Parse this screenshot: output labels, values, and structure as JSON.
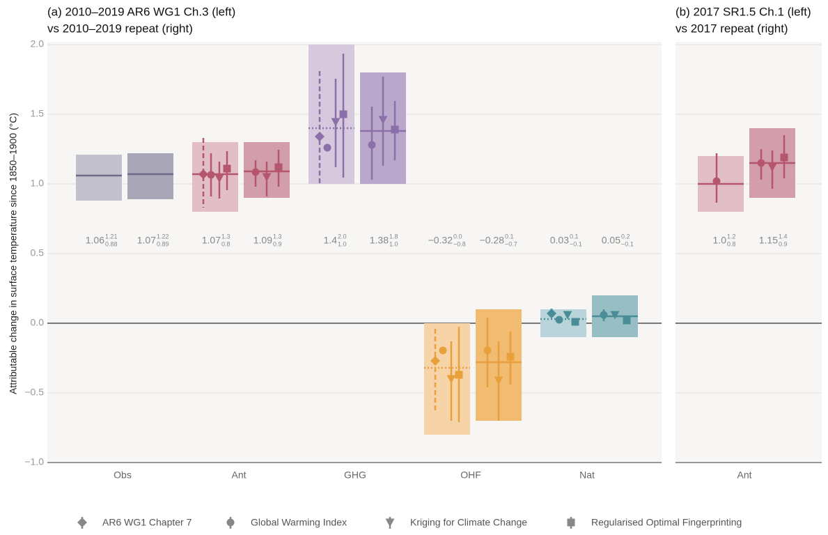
{
  "chart_data": {
    "type": "interval",
    "y_label": "Attributable change in surface temperature since 1850–1900 (°C)",
    "ylim": [
      -1,
      2
    ],
    "yticks": [
      {
        "value": -1,
        "label": "−1.0"
      },
      {
        "value": -0.5,
        "label": "−0.5"
      },
      {
        "value": 0,
        "label": "0.0"
      },
      0.5,
      {
        "value": 1,
        "label": "1.0"
      },
      1.5,
      {
        "value": 2,
        "label": "2.0"
      }
    ],
    "grid": true,
    "methods": [
      {
        "name": "AR6 WG1 Chapter 7",
        "marker": "diamond",
        "line": "dashed"
      },
      {
        "name": "Global Warming Index",
        "marker": "circle",
        "line": "solid"
      },
      {
        "name": "Kriging for Climate Change",
        "marker": "triangle-down",
        "line": "solid"
      },
      {
        "name": "Regularised Optimal Fingerprinting",
        "marker": "square",
        "line": "solid"
      }
    ],
    "panels": [
      {
        "title_lines": [
          "(a) 2010–2019 AR6 WG1 Ch.3 (left)",
          "vs 2010–2019 repeat (right)"
        ],
        "categories": [
          {
            "name": "Obs",
            "color": "#6f6a87",
            "boxes": [
              {
                "value": 1.06,
                "low": 0.88,
                "high": 1.21,
                "labels": {
                  "value": "1.06",
                  "low": "0.88",
                  "high": "1.21"
                },
                "fill": "#c3c0cd",
                "line": "solid",
                "estimates": []
              },
              {
                "value": 1.07,
                "low": 0.89,
                "high": 1.22,
                "labels": {
                  "value": "1.07",
                  "low": "0.89",
                  "high": "1.22"
                },
                "fill": "#a9a6b8",
                "line": "solid",
                "estimates": []
              }
            ]
          },
          {
            "name": "Ant",
            "color": "#b5566e",
            "boxes": [
              {
                "value": 1.07,
                "low": 0.8,
                "high": 1.3,
                "labels": {
                  "value": "1.07",
                  "low": "0.8",
                  "high": "1.3"
                },
                "fill": "#e2bfc8",
                "line": "solid",
                "estimates": [
                  {
                    "method": 0,
                    "value": 1.07,
                    "low": 0.83,
                    "high": 1.33
                  },
                  {
                    "method": 1,
                    "value": 1.065,
                    "low": 0.91,
                    "high": 1.22
                  },
                  {
                    "method": 2,
                    "value": 1.04,
                    "low": 0.895,
                    "high": 1.16
                  },
                  {
                    "method": 3,
                    "value": 1.11,
                    "low": 0.955,
                    "high": 1.235
                  }
                ]
              },
              {
                "value": 1.09,
                "low": 0.9,
                "high": 1.3,
                "labels": {
                  "value": "1.09",
                  "low": "0.9",
                  "high": "1.3"
                },
                "fill": "#d29eab",
                "line": "solid",
                "estimates": [
                  {
                    "method": 1,
                    "value": 1.085,
                    "low": 0.98,
                    "high": 1.17
                  },
                  {
                    "method": 2,
                    "value": 1.05,
                    "low": 0.91,
                    "high": 1.16
                  },
                  {
                    "method": 3,
                    "value": 1.12,
                    "low": 0.98,
                    "high": 1.245
                  }
                ]
              }
            ]
          },
          {
            "name": "GHG",
            "color": "#8a6fa8",
            "boxes": [
              {
                "value": 1.4,
                "low": 1.0,
                "high": 2.0,
                "labels": {
                  "value": "1.4",
                  "low": "1.0",
                  "high": "2.0"
                },
                "fill": "#d6c9de",
                "line": "dotted",
                "estimates": [
                  {
                    "method": 0,
                    "value": 1.34,
                    "low": 1.0,
                    "high": 1.81
                  },
                  {
                    "method": 1,
                    "value": 1.26,
                    "low": null,
                    "high": null
                  },
                  {
                    "method": 2,
                    "value": 1.445,
                    "low": 1.12,
                    "high": 1.755
                  },
                  {
                    "method": 3,
                    "value": 1.5,
                    "low": 1.045,
                    "high": 1.935
                  }
                ]
              },
              {
                "value": 1.38,
                "low": 1.0,
                "high": 1.8,
                "labels": {
                  "value": "1.38",
                  "low": "1.0",
                  "high": "1.8"
                },
                "fill": "#baa8cc",
                "line": "solid",
                "estimates": [
                  {
                    "method": 1,
                    "value": 1.28,
                    "low": 1.03,
                    "high": 1.555
                  },
                  {
                    "method": 2,
                    "value": 1.46,
                    "low": 1.13,
                    "high": 1.77
                  },
                  {
                    "method": 3,
                    "value": 1.39,
                    "low": 1.17,
                    "high": 1.595
                  }
                ]
              }
            ]
          },
          {
            "name": "OHF",
            "color": "#e8a03a",
            "boxes": [
              {
                "value": -0.32,
                "low": -0.8,
                "high": 0.0,
                "labels": {
                  "value": "−0.32",
                  "low": "−0.8",
                  "high": "0.0"
                },
                "fill": "#f6d4a8",
                "line": "dotted",
                "estimates": [
                  {
                    "method": 0,
                    "value": -0.27,
                    "low": -0.63,
                    "high": -0.04
                  },
                  {
                    "method": 1,
                    "value": -0.195,
                    "low": null,
                    "high": null
                  },
                  {
                    "method": 2,
                    "value": -0.4,
                    "low": -0.7,
                    "high": -0.13
                  },
                  {
                    "method": 3,
                    "value": -0.37,
                    "low": -0.71,
                    "high": -0.025
                  }
                ]
              },
              {
                "value": -0.28,
                "low": -0.7,
                "high": 0.1,
                "labels": {
                  "value": "−0.28",
                  "low": "−0.7",
                  "high": "0.1"
                },
                "fill": "#f1bb72",
                "line": "solid",
                "estimates": [
                  {
                    "method": 1,
                    "value": -0.195,
                    "low": -0.46,
                    "high": 0.04
                  },
                  {
                    "method": 2,
                    "value": -0.41,
                    "low": -0.7,
                    "high": -0.13
                  },
                  {
                    "method": 3,
                    "value": -0.24,
                    "low": -0.44,
                    "high": -0.06
                  }
                ]
              }
            ]
          },
          {
            "name": "Nat",
            "color": "#4a8d99",
            "boxes": [
              {
                "value": 0.03,
                "low": -0.1,
                "high": 0.1,
                "labels": {
                  "value": "0.03",
                  "low": "−0.1",
                  "high": "0.1"
                },
                "fill": "#b9d5da",
                "line": "dotted",
                "estimates": [
                  {
                    "method": 0,
                    "value": 0.07,
                    "low": 0.04,
                    "high": 0.105
                  },
                  {
                    "method": 1,
                    "value": 0.025,
                    "low": null,
                    "high": null
                  },
                  {
                    "method": 2,
                    "value": 0.06,
                    "low": null,
                    "high": null
                  },
                  {
                    "method": 3,
                    "value": 0.01,
                    "low": null,
                    "high": null
                  }
                ]
              },
              {
                "value": 0.05,
                "low": -0.1,
                "high": 0.2,
                "labels": {
                  "value": "0.05",
                  "low": "−0.1",
                  "high": "0.2"
                },
                "fill": "#97bec4",
                "line": "solid",
                "estimates": [
                  {
                    "method": 1,
                    "value": 0.06,
                    "low": 0.015,
                    "high": 0.1
                  },
                  {
                    "method": 2,
                    "value": 0.06,
                    "low": null,
                    "high": null
                  },
                  {
                    "method": 3,
                    "value": 0.02,
                    "low": null,
                    "high": null
                  }
                ]
              }
            ]
          }
        ]
      },
      {
        "title_lines": [
          "(b) 2017 SR1.5 Ch.1 (left)",
          "vs 2017 repeat (right)"
        ],
        "categories": [
          {
            "name": "Ant",
            "color": "#b5566e",
            "boxes": [
              {
                "value": 1.0,
                "low": 0.8,
                "high": 1.2,
                "labels": {
                  "value": "1.0",
                  "low": "0.8",
                  "high": "1.2"
                },
                "fill": "#e2bfc8",
                "line": "solid",
                "estimates": [
                  {
                    "method": 1,
                    "value": 1.02,
                    "low": 0.865,
                    "high": 1.22
                  }
                ]
              },
              {
                "value": 1.15,
                "low": 0.9,
                "high": 1.4,
                "labels": {
                  "value": "1.15",
                  "low": "0.9",
                  "high": "1.4"
                },
                "fill": "#d29eab",
                "line": "solid",
                "estimates": [
                  {
                    "method": 1,
                    "value": 1.15,
                    "low": 1.03,
                    "high": 1.25
                  },
                  {
                    "method": 2,
                    "value": 1.12,
                    "low": 0.965,
                    "high": 1.24
                  },
                  {
                    "method": 3,
                    "value": 1.19,
                    "low": 1.04,
                    "high": 1.35
                  }
                ]
              }
            ]
          }
        ]
      }
    ]
  }
}
